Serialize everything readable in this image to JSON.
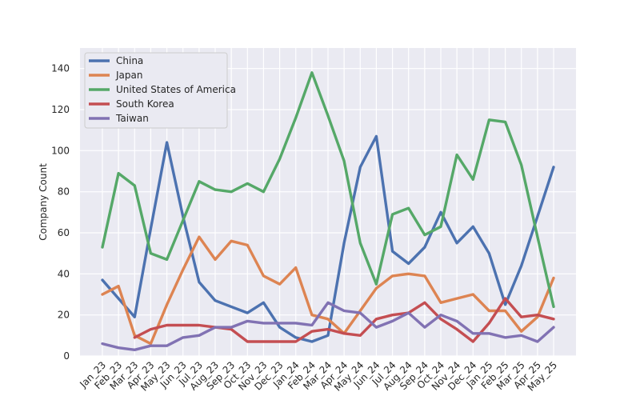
{
  "chart_data": {
    "type": "line",
    "title": "",
    "xlabel": "",
    "ylabel": "Company Count",
    "ylim": [
      0,
      150
    ],
    "yticks": [
      0,
      20,
      40,
      60,
      80,
      100,
      120,
      140
    ],
    "grid": true,
    "legend_position": "top-left",
    "categories": [
      "Jan_23",
      "Feb_23",
      "Mar_23",
      "Apr_23",
      "May_23",
      "Jun_23",
      "Jul_23",
      "Aug_23",
      "Sep_23",
      "Oct_23",
      "Nov_23",
      "Dec_23",
      "Jan_24",
      "Feb_24",
      "Mar_24",
      "Apr_24",
      "May_24",
      "Jun_24",
      "Jul_24",
      "Aug_24",
      "Sep_24",
      "Oct_24",
      "Nov_24",
      "Dec_24",
      "Jan_25",
      "Feb_25",
      "Mar_25",
      "Apr_25",
      "May_25"
    ],
    "series": [
      {
        "name": "China",
        "color": "#4c72b0",
        "values": [
          37,
          28,
          19,
          62,
          104,
          68,
          36,
          27,
          24,
          21,
          26,
          14,
          9,
          7,
          10,
          55,
          92,
          107,
          51,
          45,
          53,
          70,
          55,
          63,
          50,
          25,
          44,
          68,
          92
        ]
      },
      {
        "name": "Japan",
        "color": "#dd8452",
        "values": [
          30,
          34,
          10,
          6,
          25,
          42,
          58,
          47,
          56,
          54,
          39,
          35,
          43,
          20,
          18,
          11,
          22,
          33,
          39,
          40,
          39,
          26,
          28,
          30,
          22,
          22,
          12,
          19,
          38
        ]
      },
      {
        "name": "United States of America",
        "color": "#55a868",
        "values": [
          53,
          89,
          83,
          50,
          47,
          66,
          85,
          81,
          80,
          84,
          80,
          96,
          116,
          138,
          117,
          95,
          55,
          35,
          69,
          72,
          59,
          63,
          98,
          86,
          115,
          114,
          93,
          58,
          24
        ]
      },
      {
        "name": "South Korea",
        "color": "#c44e52",
        "values": [
          null,
          null,
          9,
          13,
          15,
          15,
          15,
          14,
          13,
          7,
          7,
          7,
          7,
          12,
          13,
          11,
          10,
          18,
          20,
          21,
          26,
          18,
          13,
          7,
          16,
          28,
          19,
          20,
          18
        ]
      },
      {
        "name": "Taiwan",
        "color": "#8172b3",
        "values": [
          6,
          4,
          3,
          5,
          5,
          9,
          10,
          14,
          14,
          17,
          16,
          16,
          16,
          15,
          26,
          22,
          21,
          14,
          17,
          21,
          14,
          20,
          17,
          11,
          11,
          9,
          10,
          7,
          14
        ]
      }
    ]
  }
}
